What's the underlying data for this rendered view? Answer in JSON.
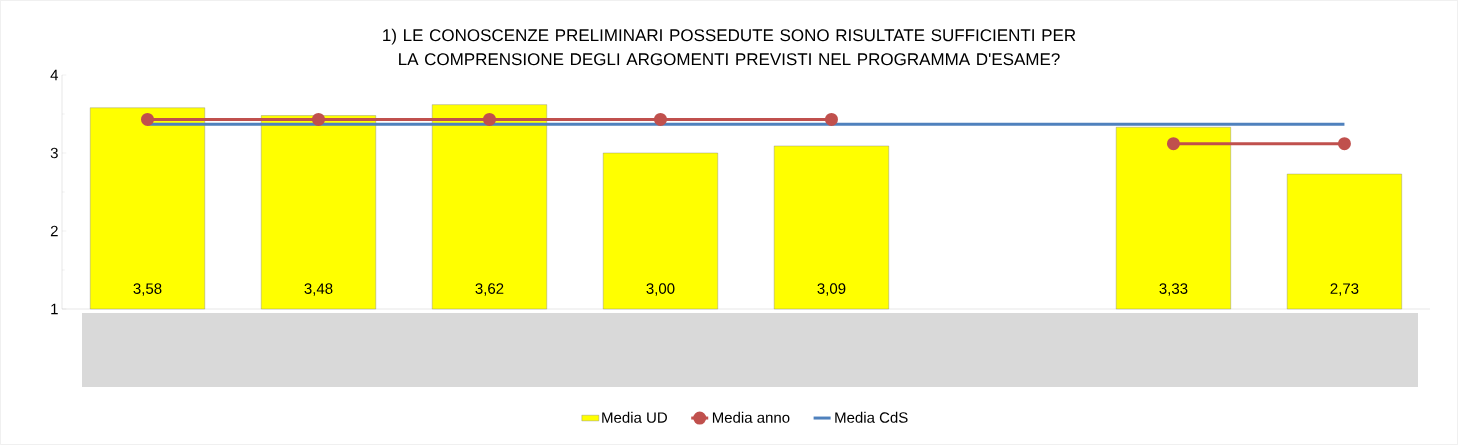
{
  "chart_data": {
    "type": "bar",
    "title": "1) LE CONOSCENZE PRELIMINARI POSSEDUTE SONO RISULTATE SUFFICIENTI PER LA COMPRENSIONE DEGLI ARGOMENTI PREVISTI NEL PROGRAMMA D'ESAME?",
    "categories": [
      null,
      null,
      null,
      null,
      null,
      null,
      null,
      null
    ],
    "series": [
      {
        "name": "Media UD",
        "color": "#ffff00",
        "values": [
          3.58,
          3.48,
          3.62,
          3.0,
          3.09,
          null,
          3.33,
          2.73
        ],
        "value_labels": [
          "3,58",
          "3,48",
          "3,62",
          "3,00",
          "3,09",
          null,
          "3,33",
          "2,73"
        ]
      },
      {
        "name": "Media anno",
        "type": "line",
        "color": "#c0504d",
        "marker": "circle",
        "values": [
          3.43,
          3.43,
          3.43,
          3.43,
          3.43,
          null,
          3.12,
          3.12
        ]
      },
      {
        "name": "Media CdS",
        "type": "line",
        "color": "#4f81bd",
        "marker": "none",
        "values": [
          3.37,
          3.37,
          3.37,
          3.37,
          3.37,
          3.37,
          3.37,
          3.37
        ]
      }
    ],
    "ylim": [
      1,
      4
    ],
    "yticks": [
      1,
      2,
      3,
      4
    ],
    "legend": "bottom"
  }
}
